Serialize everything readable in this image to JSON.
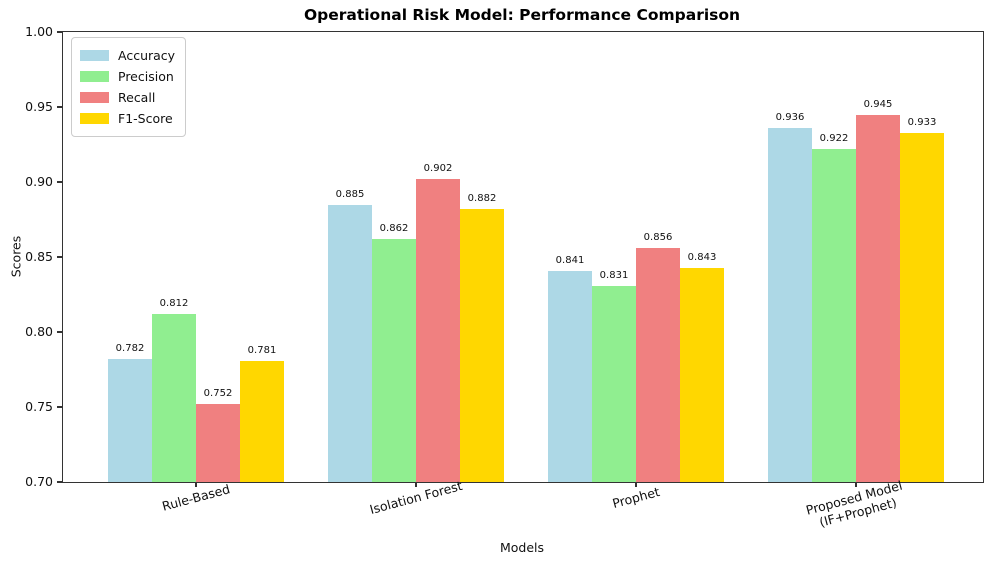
{
  "chart_data": {
    "type": "bar",
    "title": "Operational Risk Model: Performance Comparison",
    "xlabel": "Models",
    "ylabel": "Scores",
    "ylim": [
      0.7,
      1.0
    ],
    "yticks": [
      "1.00",
      "0.95",
      "0.90",
      "0.85",
      "0.80",
      "0.75",
      "0.70"
    ],
    "ytick_values": [
      1.0,
      0.95,
      0.9,
      0.85,
      0.8,
      0.75,
      0.7
    ],
    "categories": [
      "Rule-Based",
      "Isolation Forest",
      "Prophet",
      "Proposed Model\n(IF+Prophet)"
    ],
    "series": [
      {
        "name": "Accuracy",
        "color": "#ADD8E6",
        "values": [
          0.782,
          0.885,
          0.841,
          0.936
        ]
      },
      {
        "name": "Precision",
        "color": "#90EE90",
        "values": [
          0.812,
          0.862,
          0.831,
          0.922
        ]
      },
      {
        "name": "Recall",
        "color": "#F08080",
        "values": [
          0.752,
          0.902,
          0.856,
          0.945
        ]
      },
      {
        "name": "F1-Score",
        "color": "#FFD700",
        "values": [
          0.781,
          0.882,
          0.843,
          0.933
        ]
      }
    ],
    "value_label_decimals": 3,
    "legend_position": "upper left",
    "grid": false,
    "background_color": "#ffffff",
    "spine_color": "#333333"
  }
}
